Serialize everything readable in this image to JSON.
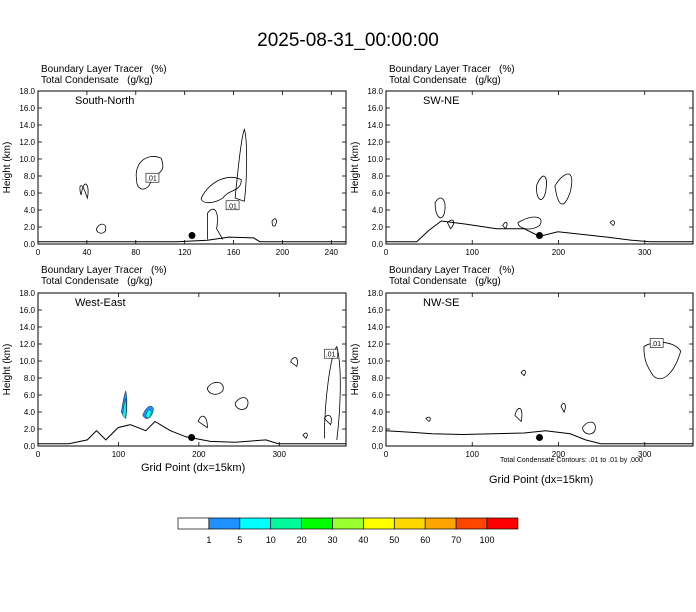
{
  "title": "2025-08-31_00:00:00",
  "header_line1": "Boundary Layer Tracer   (%)",
  "header_line2": "Total Condensate   (g/kg)",
  "xlabel": "Grid Point (dx=15km)",
  "footnote": "Total Condensate Contours: .01 to .01 by .000",
  "colorbar": {
    "colors": [
      "#ffffff",
      "#1e90ff",
      "#00ffff",
      "#00fa9a",
      "#00ff00",
      "#9aff2e",
      "#ffff00",
      "#ffd700",
      "#ffa500",
      "#ff4500",
      "#ff0000"
    ],
    "labels": [
      "1",
      "5",
      "10",
      "20",
      "30",
      "40",
      "50",
      "60",
      "70",
      "100"
    ]
  },
  "chart_data": [
    {
      "type": "contour",
      "title": "South-North",
      "ylabel": "Height (km)",
      "xlim": [
        0,
        252
      ],
      "ylim": [
        0,
        18
      ],
      "xticks": [
        "0",
        "40",
        "80",
        "120",
        "160",
        "200",
        "240"
      ],
      "yticks": [
        "0.0",
        "2.0",
        "4.0",
        "6.0",
        "8.0",
        "10.0",
        "12.0",
        "14.0",
        "16.0",
        "18.0"
      ],
      "contour_labels": [
        ".01",
        ".01"
      ],
      "point": [
        126,
        1
      ]
    },
    {
      "type": "contour",
      "title": "SW-NE",
      "ylabel": "Height (km)",
      "xlim": [
        0,
        356
      ],
      "ylim": [
        0,
        18
      ],
      "xticks": [
        "0",
        "100",
        "200",
        "300"
      ],
      "yticks": [
        "0.0",
        "2.0",
        "4.0",
        "6.0",
        "8.0",
        "10.0",
        "12.0",
        "14.0",
        "16.0",
        "18.0"
      ],
      "contour_labels": [],
      "point": [
        178,
        1
      ]
    },
    {
      "type": "contour",
      "title": "West-East",
      "ylabel": "Height (km)",
      "xlim": [
        0,
        383
      ],
      "ylim": [
        0,
        18
      ],
      "xticks": [
        "0",
        "100",
        "200",
        "300"
      ],
      "yticks": [
        "0.0",
        "2.0",
        "4.0",
        "6.0",
        "8.0",
        "10.0",
        "12.0",
        "14.0",
        "16.0",
        "18.0"
      ],
      "contour_labels": [
        ".01"
      ],
      "point": [
        191,
        1
      ]
    },
    {
      "type": "contour",
      "title": "NW-SE",
      "ylabel": "Height (km)",
      "xlim": [
        0,
        356
      ],
      "ylim": [
        0,
        18
      ],
      "xticks": [
        "0",
        "100",
        "200",
        "300"
      ],
      "yticks": [
        "0.0",
        "2.0",
        "4.0",
        "6.0",
        "8.0",
        "10.0",
        "12.0",
        "14.0",
        "16.0",
        "18.0"
      ],
      "contour_labels": [
        ".01"
      ],
      "point": [
        178,
        1
      ]
    }
  ]
}
